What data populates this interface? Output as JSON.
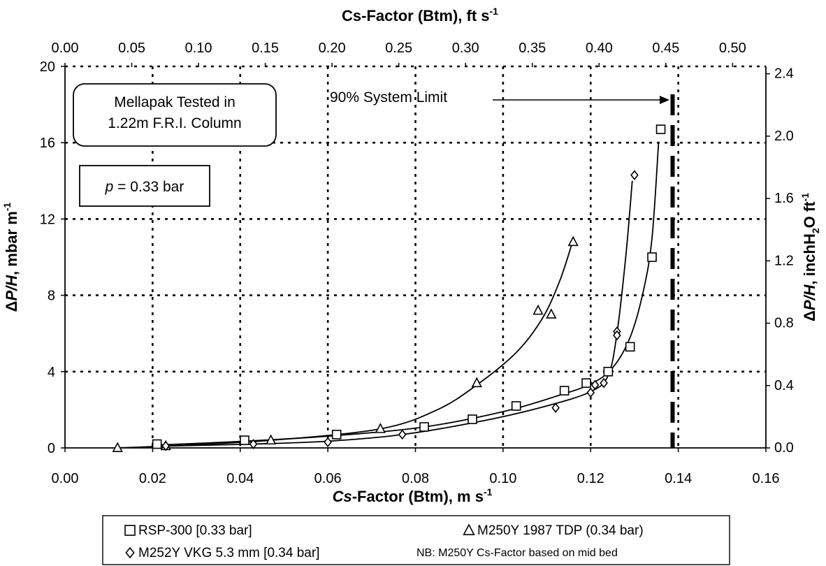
{
  "chart_data": {
    "type": "scatter",
    "xlabel_prefix": "Cs",
    "xlabel_rest": "-Factor (Btm), m s",
    "xlabel_exp": "-1",
    "xlabel2_prefix": "Cs",
    "xlabel2_rest": "-Factor (Btm), ft s",
    "xlabel2_exp": "-1",
    "ylabel_delta": "Δ",
    "ylabel_var": "P/H",
    "ylabel_units": ", mbar m",
    "ylabel_exp": "-1",
    "ylabel2_delta": "Δ",
    "ylabel2_var": "P/H",
    "ylabel2_units_a": ", inchH",
    "ylabel2_sub": "2",
    "ylabel2_units_b": "O ft",
    "ylabel2_exp": "-1",
    "xlim": [
      0,
      0.16
    ],
    "ylim": [
      0,
      20
    ],
    "x_ticks": [
      "0.00",
      "0.02",
      "0.04",
      "0.06",
      "0.08",
      "0.10",
      "0.12",
      "0.14",
      "0.16"
    ],
    "y_ticks": [
      "0",
      "4",
      "8",
      "12",
      "16",
      "20"
    ],
    "x2_ticks": [
      "0.00",
      "0.05",
      "0.10",
      "0.15",
      "0.20",
      "0.25",
      "0.30",
      "0.35",
      "0.40",
      "0.45",
      "0.50"
    ],
    "y2_ticks": [
      "0.0",
      "0.4",
      "0.8",
      "1.2",
      "1.6",
      "2.0",
      "2.4"
    ],
    "grid": true,
    "series": [
      {
        "name": "RSP-300 [0.33 bar]",
        "marker": "square",
        "x": [
          0.021,
          0.041,
          0.062,
          0.082,
          0.093,
          0.103,
          0.114,
          0.119,
          0.124,
          0.129,
          0.134,
          0.136
        ],
        "y": [
          0.2,
          0.4,
          0.7,
          1.1,
          1.5,
          2.2,
          3.0,
          3.4,
          4.0,
          5.3,
          10.0,
          16.7
        ]
      },
      {
        "name": "M250Y 1987 TDP (0.34 bar)",
        "marker": "triangle",
        "x": [
          0.012,
          0.023,
          0.047,
          0.072,
          0.094,
          0.108,
          0.111,
          0.116
        ],
        "y": [
          0.0,
          0.1,
          0.4,
          1.0,
          3.4,
          7.2,
          7.0,
          10.8
        ]
      },
      {
        "name": "M252Y VKG 5.3 mm [0.34 bar]",
        "marker": "diamond",
        "x": [
          0.023,
          0.043,
          0.06,
          0.077,
          0.112,
          0.12,
          0.121,
          0.123,
          0.126,
          0.126,
          0.13
        ],
        "y": [
          0.1,
          0.2,
          0.3,
          0.7,
          2.1,
          2.9,
          3.3,
          3.4,
          6.1,
          5.9,
          14.3
        ]
      }
    ],
    "curves": [
      {
        "series": "RSP-300 [0.33 bar]",
        "x": [
          0.021,
          0.041,
          0.062,
          0.082,
          0.1,
          0.112,
          0.12,
          0.125,
          0.129,
          0.132,
          0.134,
          0.1355
        ],
        "y": [
          0.15,
          0.35,
          0.65,
          1.1,
          1.9,
          2.7,
          3.35,
          4.2,
          5.8,
          8.2,
          11.0,
          16.0
        ]
      },
      {
        "series": "M250Y 1987 TDP (0.34 bar)",
        "x": [
          0.012,
          0.023,
          0.047,
          0.072,
          0.085,
          0.094,
          0.103,
          0.109,
          0.113,
          0.116
        ],
        "y": [
          0.0,
          0.1,
          0.4,
          1.0,
          2.0,
          3.3,
          5.0,
          6.8,
          8.8,
          10.9
        ]
      },
      {
        "series": "M252Y VKG 5.3 mm [0.34 bar]",
        "x": [
          0.023,
          0.043,
          0.06,
          0.077,
          0.095,
          0.11,
          0.12,
          0.124,
          0.126,
          0.128,
          0.1295
        ],
        "y": [
          0.1,
          0.2,
          0.35,
          0.7,
          1.4,
          2.2,
          2.95,
          3.8,
          6.0,
          10.0,
          14.0
        ]
      }
    ],
    "system_limit_x": 0.1387,
    "annotations": {
      "column_box_line1": "Mellapak Tested in",
      "column_box_line2": "1.22m F.R.I. Column",
      "pressure_var": "p",
      "pressure_rest": " = 0.33 bar",
      "system_limit": "90% System Limit"
    },
    "legend": {
      "placement": "bottom",
      "items": [
        {
          "label": "RSP-300 [0.33 bar]",
          "marker": "square"
        },
        {
          "label": "M250Y 1987 TDP (0.34 bar)",
          "marker": "triangle"
        },
        {
          "label": "M252Y VKG 5.3 mm [0.34 bar]",
          "marker": "diamond"
        }
      ],
      "note": "NB: M250Y  Cs-Factor based on mid bed"
    }
  }
}
